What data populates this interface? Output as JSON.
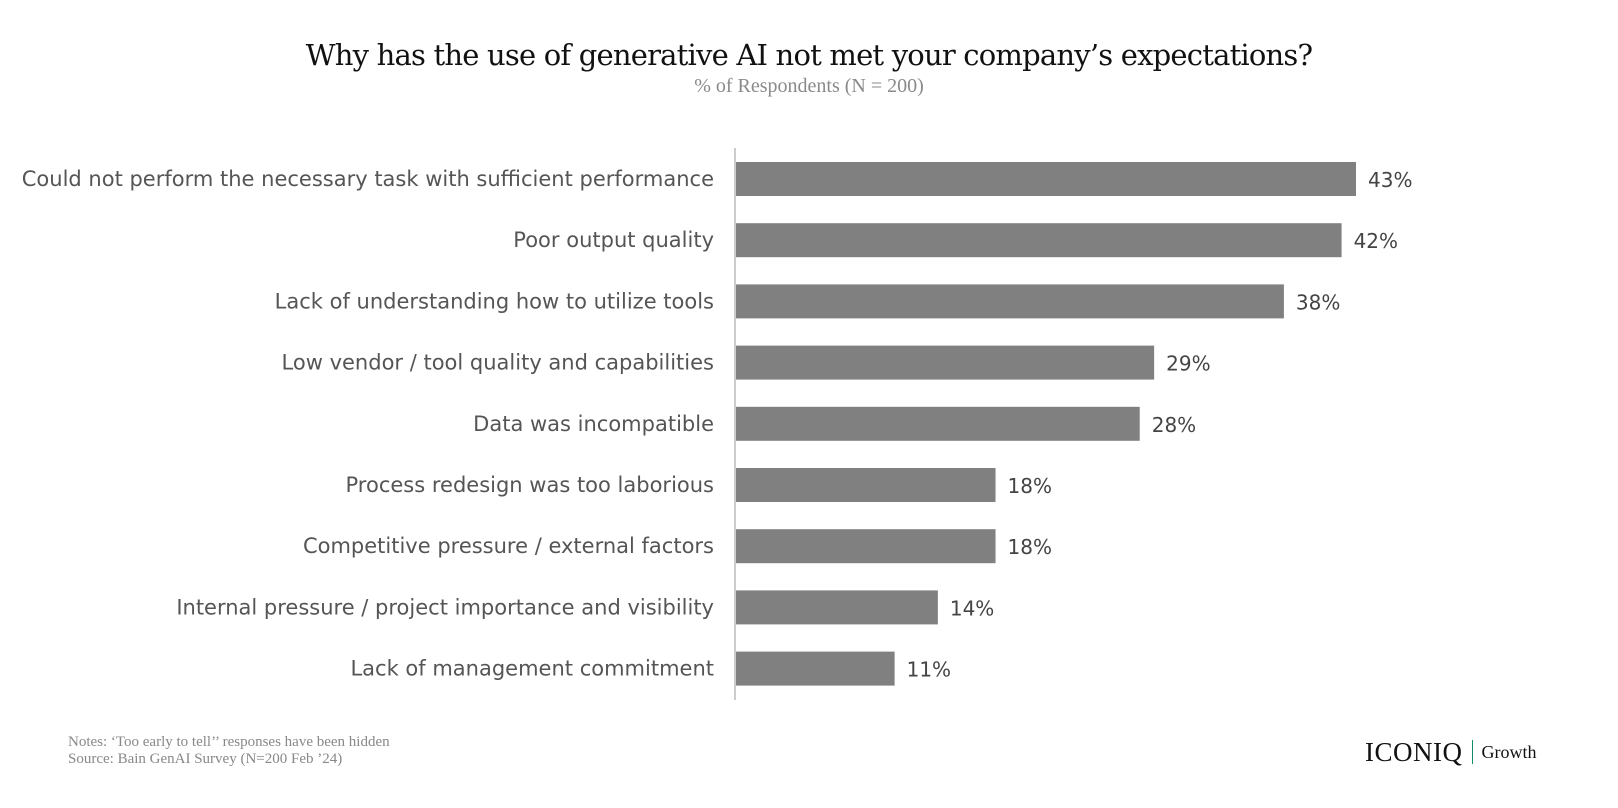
{
  "title": "Why has the use of generative AI not met your company’s expectations?",
  "subtitle": "% of Respondents (N = 200)",
  "notes": {
    "line1": "Notes: ‘Too early to tell’’ responses have been hidden",
    "line2": "Source: Bain GenAI Survey (N=200 Feb ’24)"
  },
  "brand": {
    "name": "ICONIQ",
    "sub": "Growth"
  },
  "colors": {
    "bar": "#808080",
    "axis": "#cccccc",
    "category_text": "#555555",
    "value_text": "#444444",
    "brand_divider": "#0f8a6a"
  },
  "chart_data": {
    "type": "bar",
    "orientation": "horizontal",
    "categories": [
      "Could not perform the necessary task with sufficient performance",
      "Poor output quality",
      "Lack of understanding how to utilize tools",
      "Low vendor / tool quality and capabilities",
      "Data was incompatible",
      "Process redesign was too laborious",
      "Competitive pressure / external factors",
      "Internal pressure / project importance and visibility",
      "Lack of management commitment"
    ],
    "values": [
      43,
      42,
      38,
      29,
      28,
      18,
      18,
      14,
      11
    ],
    "value_labels": [
      "43%",
      "42%",
      "38%",
      "29%",
      "28%",
      "18%",
      "18%",
      "14%",
      "11%"
    ],
    "unit": "%",
    "xlim": [
      0,
      43
    ],
    "grid": false,
    "legend": "none"
  }
}
